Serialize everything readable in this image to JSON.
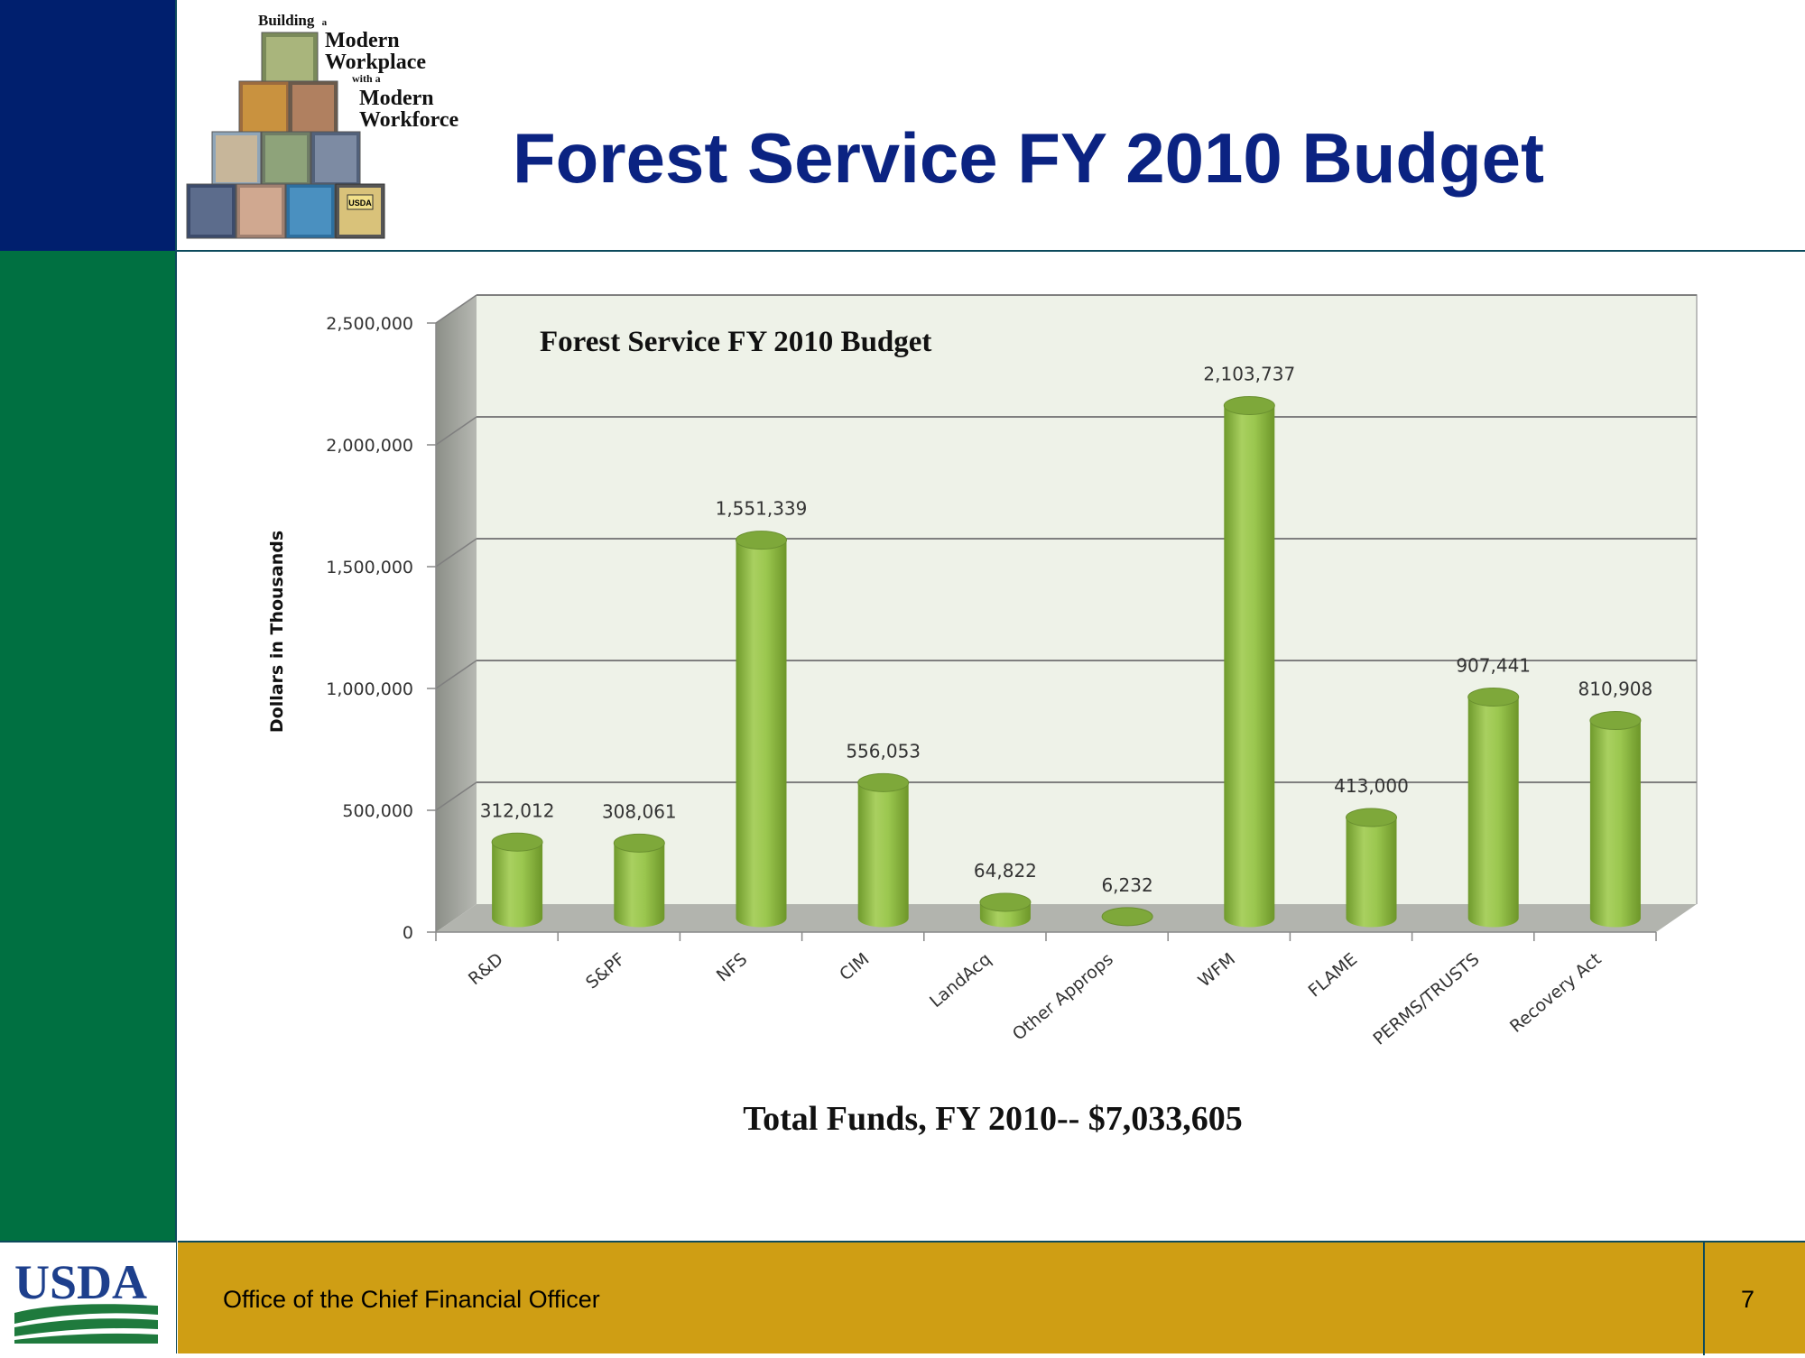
{
  "slide": {
    "title": "Forest Service FY 2010 Budget",
    "footer_text": "Office of the Chief Financial Officer",
    "page_number": "7"
  },
  "logo": {
    "line1": "Building",
    "line1_small": "a",
    "line2": "Modern",
    "line3": "Workplace",
    "line4": "with a",
    "line5": "Modern",
    "line6": "Workforce",
    "badge": "USDA"
  },
  "usda_logo": {
    "text": "USDA"
  },
  "colors": {
    "navy": "#001f6e",
    "green": "#007041",
    "gold": "#cf9e14",
    "title_blue": "#0b2382",
    "bar_green": "#9bc74f",
    "plot_bg": "#eef2e8"
  },
  "chart_data": {
    "type": "bar",
    "title": "Forest Service FY 2010 Budget",
    "ylabel": "Dollars in Thousands",
    "xlabel": "",
    "caption": "Total Funds, FY 2010-- $7,033,605",
    "categories": [
      "R&D",
      "S&PF",
      "NFS",
      "CIM",
      "LandAcq",
      "Other Approps",
      "WFM",
      "FLAME",
      "PERMS/TRUSTS",
      "Recovery Act"
    ],
    "values": [
      312012,
      308061,
      1551339,
      556053,
      64822,
      6232,
      2103737,
      413000,
      907441,
      810908
    ],
    "data_labels": [
      "312,012",
      "308,061",
      "1,551,339",
      "556,053",
      "64,822",
      "6,232",
      "2,103,737",
      "413,000",
      "907,441",
      "810,908"
    ],
    "ylim": [
      0,
      2500000
    ],
    "yticks": [
      0,
      500000,
      1000000,
      1500000,
      2000000,
      2500000
    ],
    "ytick_labels": [
      "0",
      "500,000",
      "1,000,000",
      "1,500,000",
      "2,000,000",
      "2,500,000"
    ],
    "grid": true,
    "style": "3d-cylinder"
  }
}
